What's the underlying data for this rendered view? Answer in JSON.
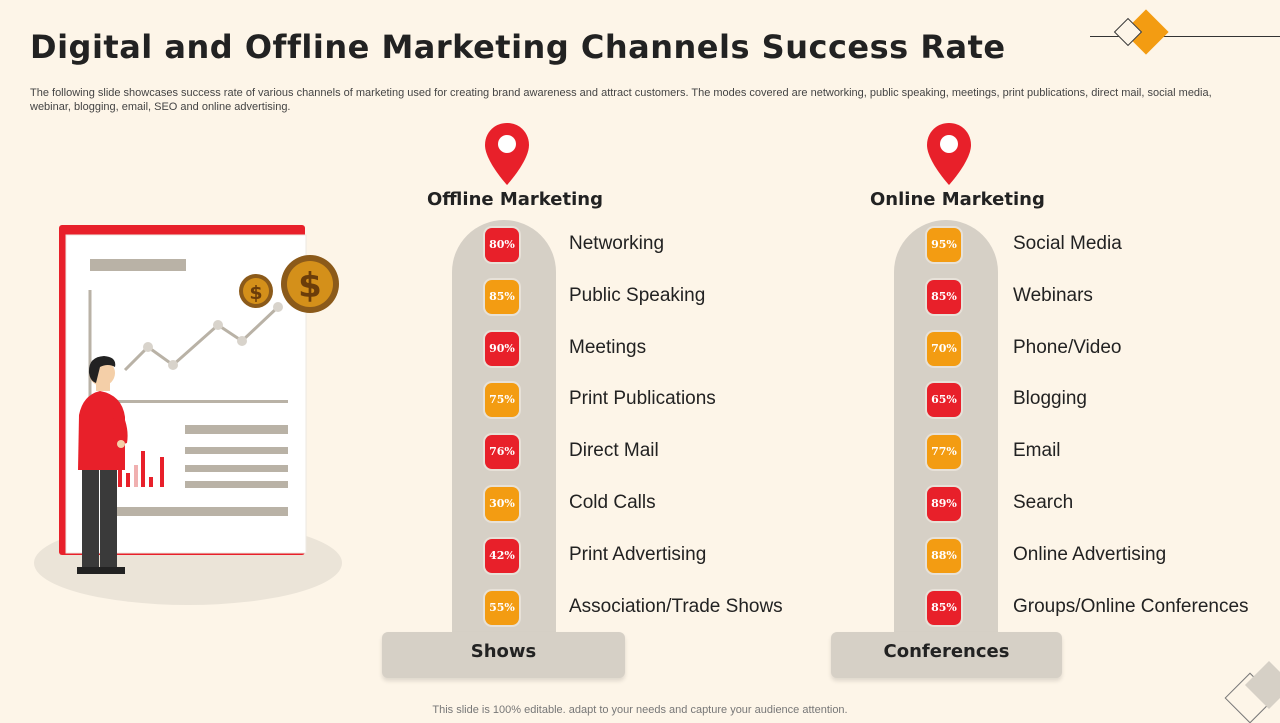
{
  "header": {
    "title": "Digital and Offline Marketing Channels Success Rate",
    "subtitle": "The following slide showcases success rate of various channels of marketing used for creating brand awareness and attract customers. The modes covered are networking, public speaking, meetings, print publications, direct mail, social media, webinar, blogging, email, SEO and online advertising."
  },
  "colors": {
    "red": "#e8202a",
    "orange": "#f39c12",
    "pill": "#d6d0c6",
    "background": "#fdf5e8"
  },
  "offline": {
    "title": "Offline Marketing",
    "base_label": "Shows",
    "items": [
      {
        "label": "Networking",
        "value": "80%",
        "color": "red"
      },
      {
        "label": "Public Speaking",
        "value": "85%",
        "color": "orange"
      },
      {
        "label": "Meetings",
        "value": "90%",
        "color": "red"
      },
      {
        "label": "Print Publications",
        "value": "75%",
        "color": "orange"
      },
      {
        "label": "Direct Mail",
        "value": "76%",
        "color": "red"
      },
      {
        "label": "Cold Calls",
        "value": "30%",
        "color": "orange"
      },
      {
        "label": "Print Advertising",
        "value": "42%",
        "color": "red"
      },
      {
        "label": "Association/Trade Shows",
        "value": "55%",
        "color": "orange"
      }
    ]
  },
  "online": {
    "title": "Online Marketing",
    "base_label": "Conferences",
    "items": [
      {
        "label": "Social Media",
        "value": "95%",
        "color": "orange"
      },
      {
        "label": "Webinars",
        "value": "85%",
        "color": "red"
      },
      {
        "label": "Phone/Video",
        "value": "70%",
        "color": "orange"
      },
      {
        "label": "Blogging",
        "value": "65%",
        "color": "red"
      },
      {
        "label": "Email",
        "value": "77%",
        "color": "orange"
      },
      {
        "label": "Search",
        "value": "89%",
        "color": "red"
      },
      {
        "label": "Online Advertising",
        "value": "88%",
        "color": "orange"
      },
      {
        "label": "Groups/Online Conferences",
        "value": "85%",
        "color": "red"
      }
    ]
  },
  "icons": [
    "location-pin-icon",
    "dollar-coin-icon",
    "person-illustration",
    "growth-chart-board"
  ],
  "footer": "This slide is 100% editable. adapt to your needs and capture your audience attention."
}
